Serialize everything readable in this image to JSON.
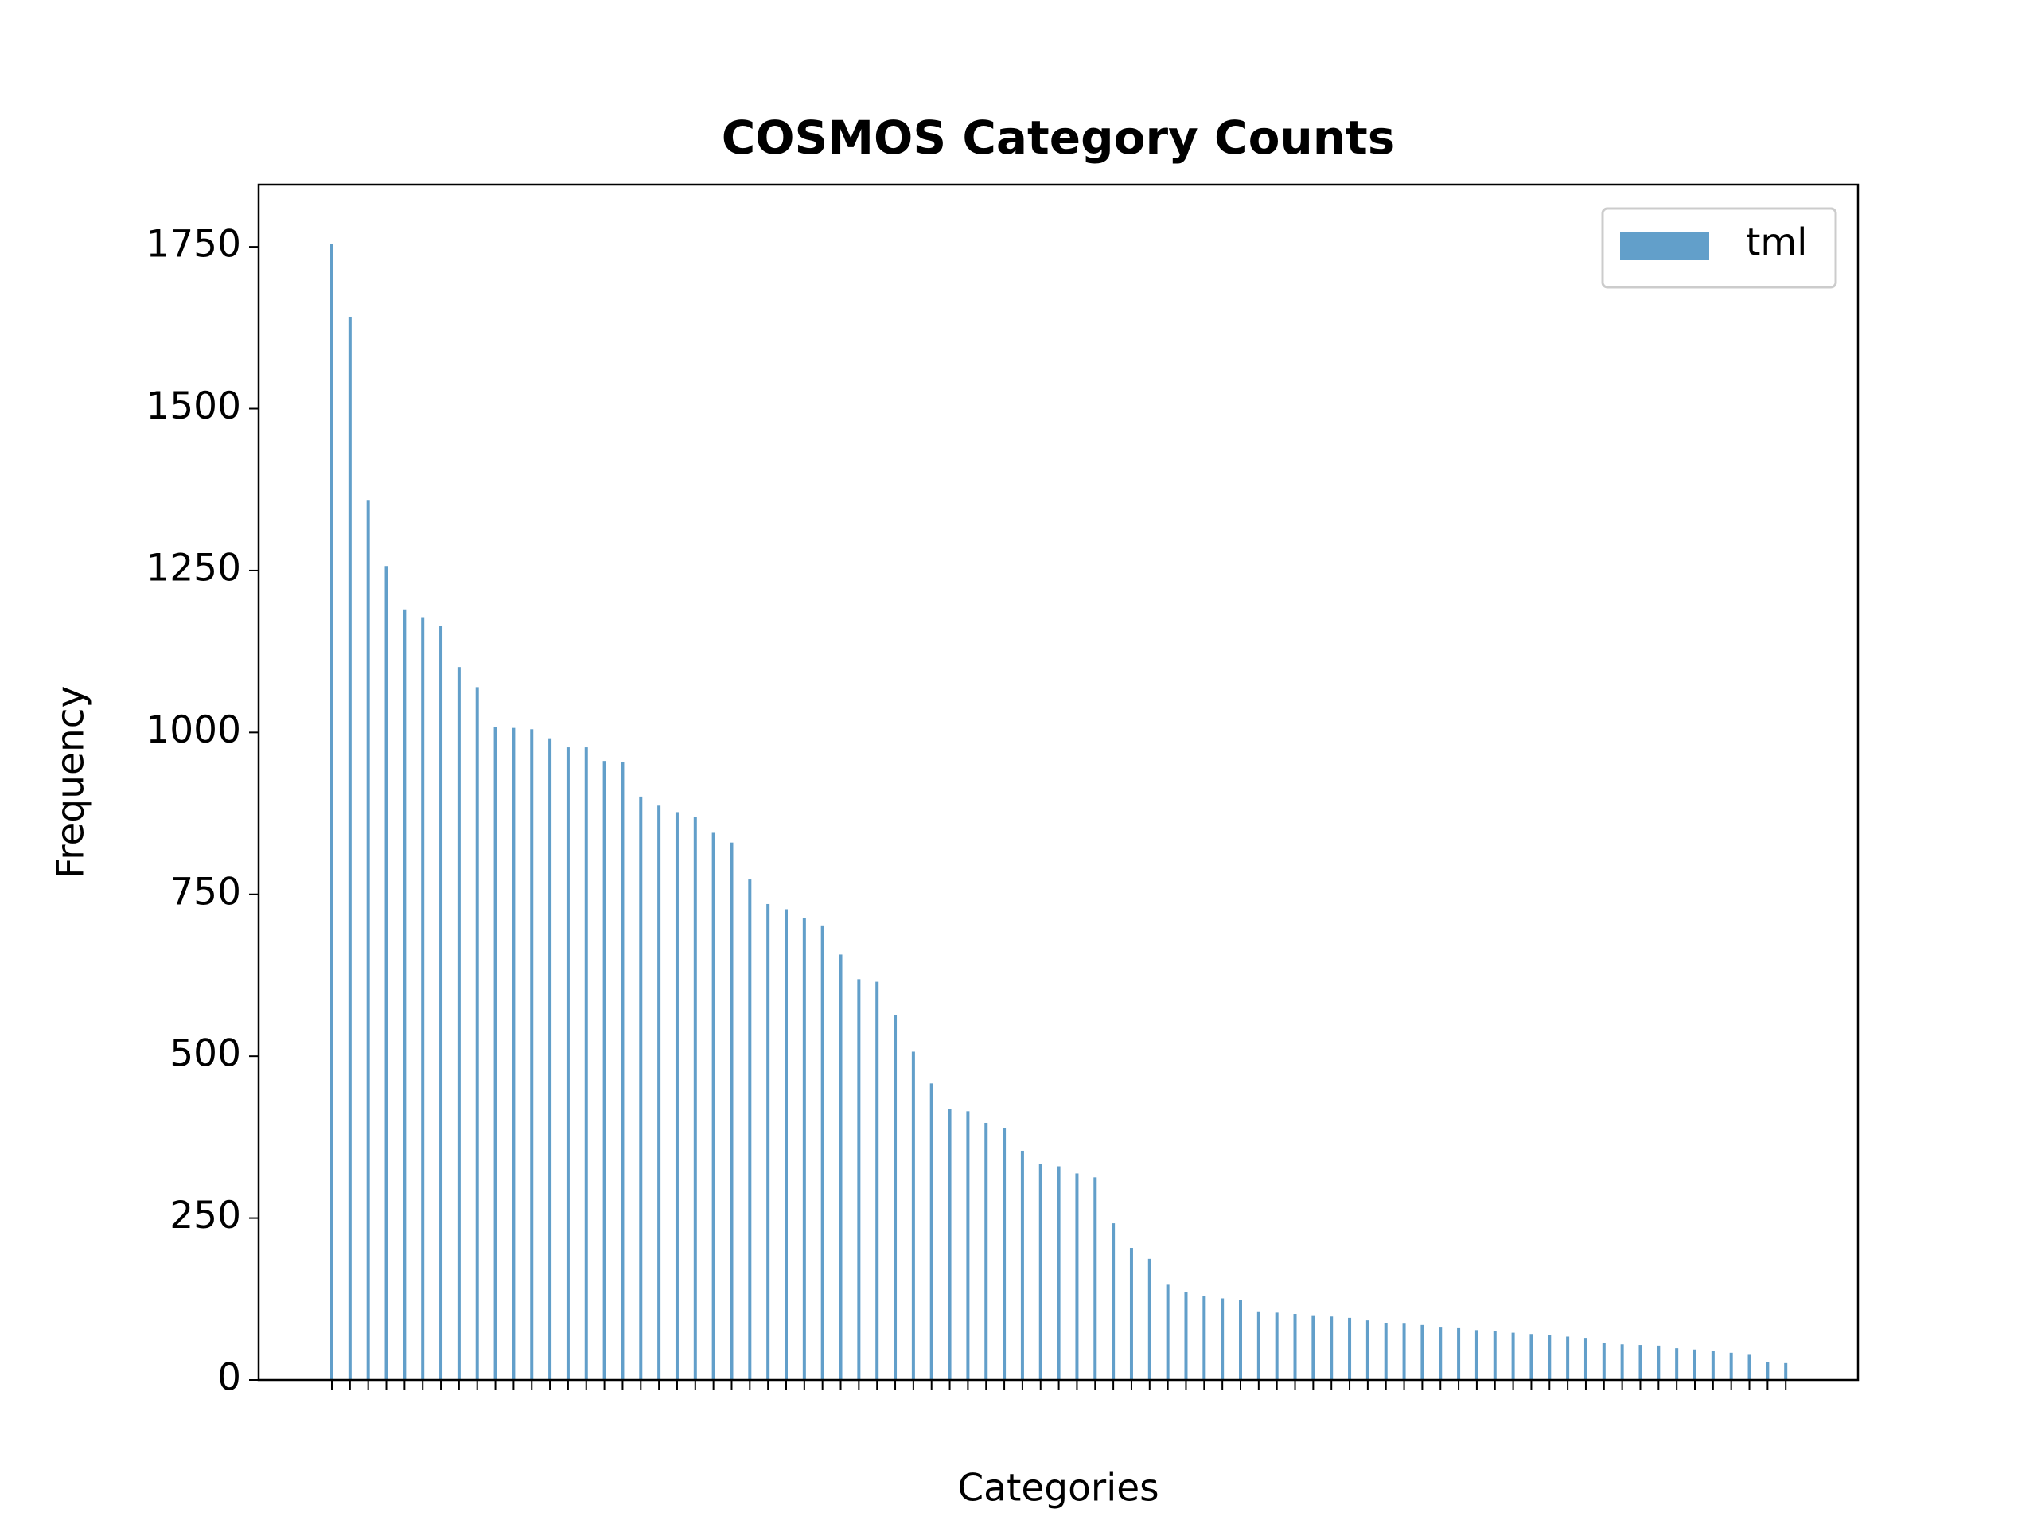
{
  "chart_data": {
    "type": "bar",
    "title": "COSMOS Category Counts",
    "xlabel": "Categories",
    "ylabel": "Frequency",
    "categories": [
      null,
      null,
      null,
      null,
      null,
      null,
      null,
      null,
      null,
      null,
      null,
      null,
      null,
      null,
      null,
      null,
      null,
      null,
      null,
      null,
      null,
      null,
      null,
      null,
      null,
      null,
      null,
      null,
      null,
      null,
      null,
      null,
      null,
      null,
      null,
      null,
      null,
      null,
      null,
      null,
      null,
      null,
      null,
      null,
      null,
      null,
      null,
      null,
      null,
      null,
      null,
      null,
      null,
      null,
      null,
      null,
      null,
      null,
      null,
      null,
      null,
      null,
      null,
      null,
      null,
      null,
      null,
      null,
      null,
      null,
      null,
      null,
      null,
      null,
      null,
      null,
      null,
      null,
      null,
      null,
      null
    ],
    "series": [
      {
        "name": "tml",
        "color": "#629fca",
        "values": [
          1754,
          1642,
          1359,
          1257,
          1190,
          1178,
          1164,
          1101,
          1070,
          1009,
          1007,
          1005,
          991,
          977,
          977,
          956,
          954,
          901,
          887,
          877,
          869,
          845,
          830,
          773,
          735,
          727,
          714,
          702,
          657,
          619,
          615,
          564,
          507,
          458,
          419,
          415,
          397,
          389,
          354,
          334,
          330,
          319,
          313,
          242,
          204,
          187,
          147,
          136,
          130,
          126,
          124,
          106,
          104,
          102,
          100,
          98,
          96,
          92,
          88,
          87,
          85,
          81,
          80,
          77,
          75,
          73,
          71,
          69,
          67,
          65,
          57,
          55,
          54,
          53,
          49,
          47,
          45,
          42,
          40,
          28,
          26
        ]
      }
    ],
    "ylim": [
      0,
      1846
    ],
    "yticks": [
      0,
      250,
      500,
      750,
      1000,
      1250,
      1500,
      1750
    ],
    "legend": "upper right"
  }
}
